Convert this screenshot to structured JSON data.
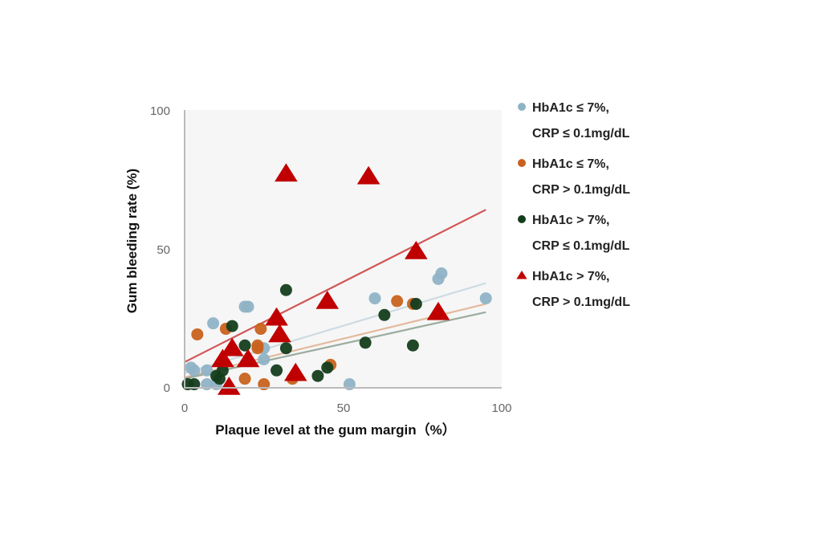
{
  "chart_data": {
    "type": "scatter",
    "xlabel": "Plaque level at the gum margin（%）",
    "ylabel": "Gum bleeding rate (%)",
    "xlim": [
      0,
      100
    ],
    "ylim": [
      0,
      100
    ],
    "xticks": [
      "0",
      "50",
      "100"
    ],
    "yticks": [
      "0",
      "50",
      "100"
    ],
    "grid": false,
    "legend_placement": "right",
    "series": [
      {
        "name_line1": "HbA1c ≤ 7%,",
        "name_line2": "CRP ≤ 0.1mg/dL",
        "marker": "circle",
        "color": "#8fb3c6",
        "points": [
          [
            2,
            7
          ],
          [
            3,
            6
          ],
          [
            9,
            23
          ],
          [
            7,
            6
          ],
          [
            7,
            1
          ],
          [
            10,
            1
          ],
          [
            19,
            29
          ],
          [
            20,
            29
          ],
          [
            25,
            14
          ],
          [
            25,
            10
          ],
          [
            52,
            1
          ],
          [
            60,
            32
          ],
          [
            80,
            39
          ],
          [
            81,
            41
          ],
          [
            95,
            32
          ]
        ],
        "trend": [
          [
            0,
            5
          ],
          [
            95,
            37.5
          ]
        ]
      },
      {
        "name_line1": "HbA1c ≤ 7%,",
        "name_line2": "CRP > 0.1mg/dL",
        "marker": "circle",
        "color": "#c8621e",
        "points": [
          [
            4,
            19
          ],
          [
            13,
            21
          ],
          [
            24,
            21
          ],
          [
            23,
            15
          ],
          [
            23,
            14
          ],
          [
            19,
            3
          ],
          [
            25,
            1
          ],
          [
            34,
            3
          ],
          [
            46,
            8
          ],
          [
            67,
            31
          ],
          [
            72,
            30
          ]
        ],
        "trend": [
          [
            0,
            3.5
          ],
          [
            95,
            30
          ]
        ]
      },
      {
        "name_line1": "HbA1c > 7%,",
        "name_line2": "CRP ≤ 0.1mg/dL",
        "marker": "circle",
        "color": "#143d1c",
        "points": [
          [
            1,
            1
          ],
          [
            3,
            1
          ],
          [
            10,
            4
          ],
          [
            11,
            3
          ],
          [
            12,
            6
          ],
          [
            15,
            22
          ],
          [
            19,
            15
          ],
          [
            29,
            6
          ],
          [
            32,
            35
          ],
          [
            32,
            14
          ],
          [
            42,
            4
          ],
          [
            45,
            7
          ],
          [
            57,
            16
          ],
          [
            63,
            26
          ],
          [
            72,
            15
          ],
          [
            73,
            30
          ]
        ],
        "trend": [
          [
            0,
            3
          ],
          [
            95,
            27
          ]
        ]
      },
      {
        "name_line1": "HbA1c > 7%,",
        "name_line2": "CRP > 0.1mg/dL",
        "marker": "triangle",
        "color": "#c00000",
        "points": [
          [
            32,
            77
          ],
          [
            58,
            76
          ],
          [
            73,
            49
          ],
          [
            45,
            31
          ],
          [
            29,
            25
          ],
          [
            30,
            19
          ],
          [
            15,
            14
          ],
          [
            12,
            10
          ],
          [
            20,
            10
          ],
          [
            35,
            5
          ],
          [
            14,
            0
          ],
          [
            80,
            27
          ]
        ],
        "trend": [
          [
            0,
            9
          ],
          [
            95,
            64
          ]
        ]
      }
    ]
  }
}
